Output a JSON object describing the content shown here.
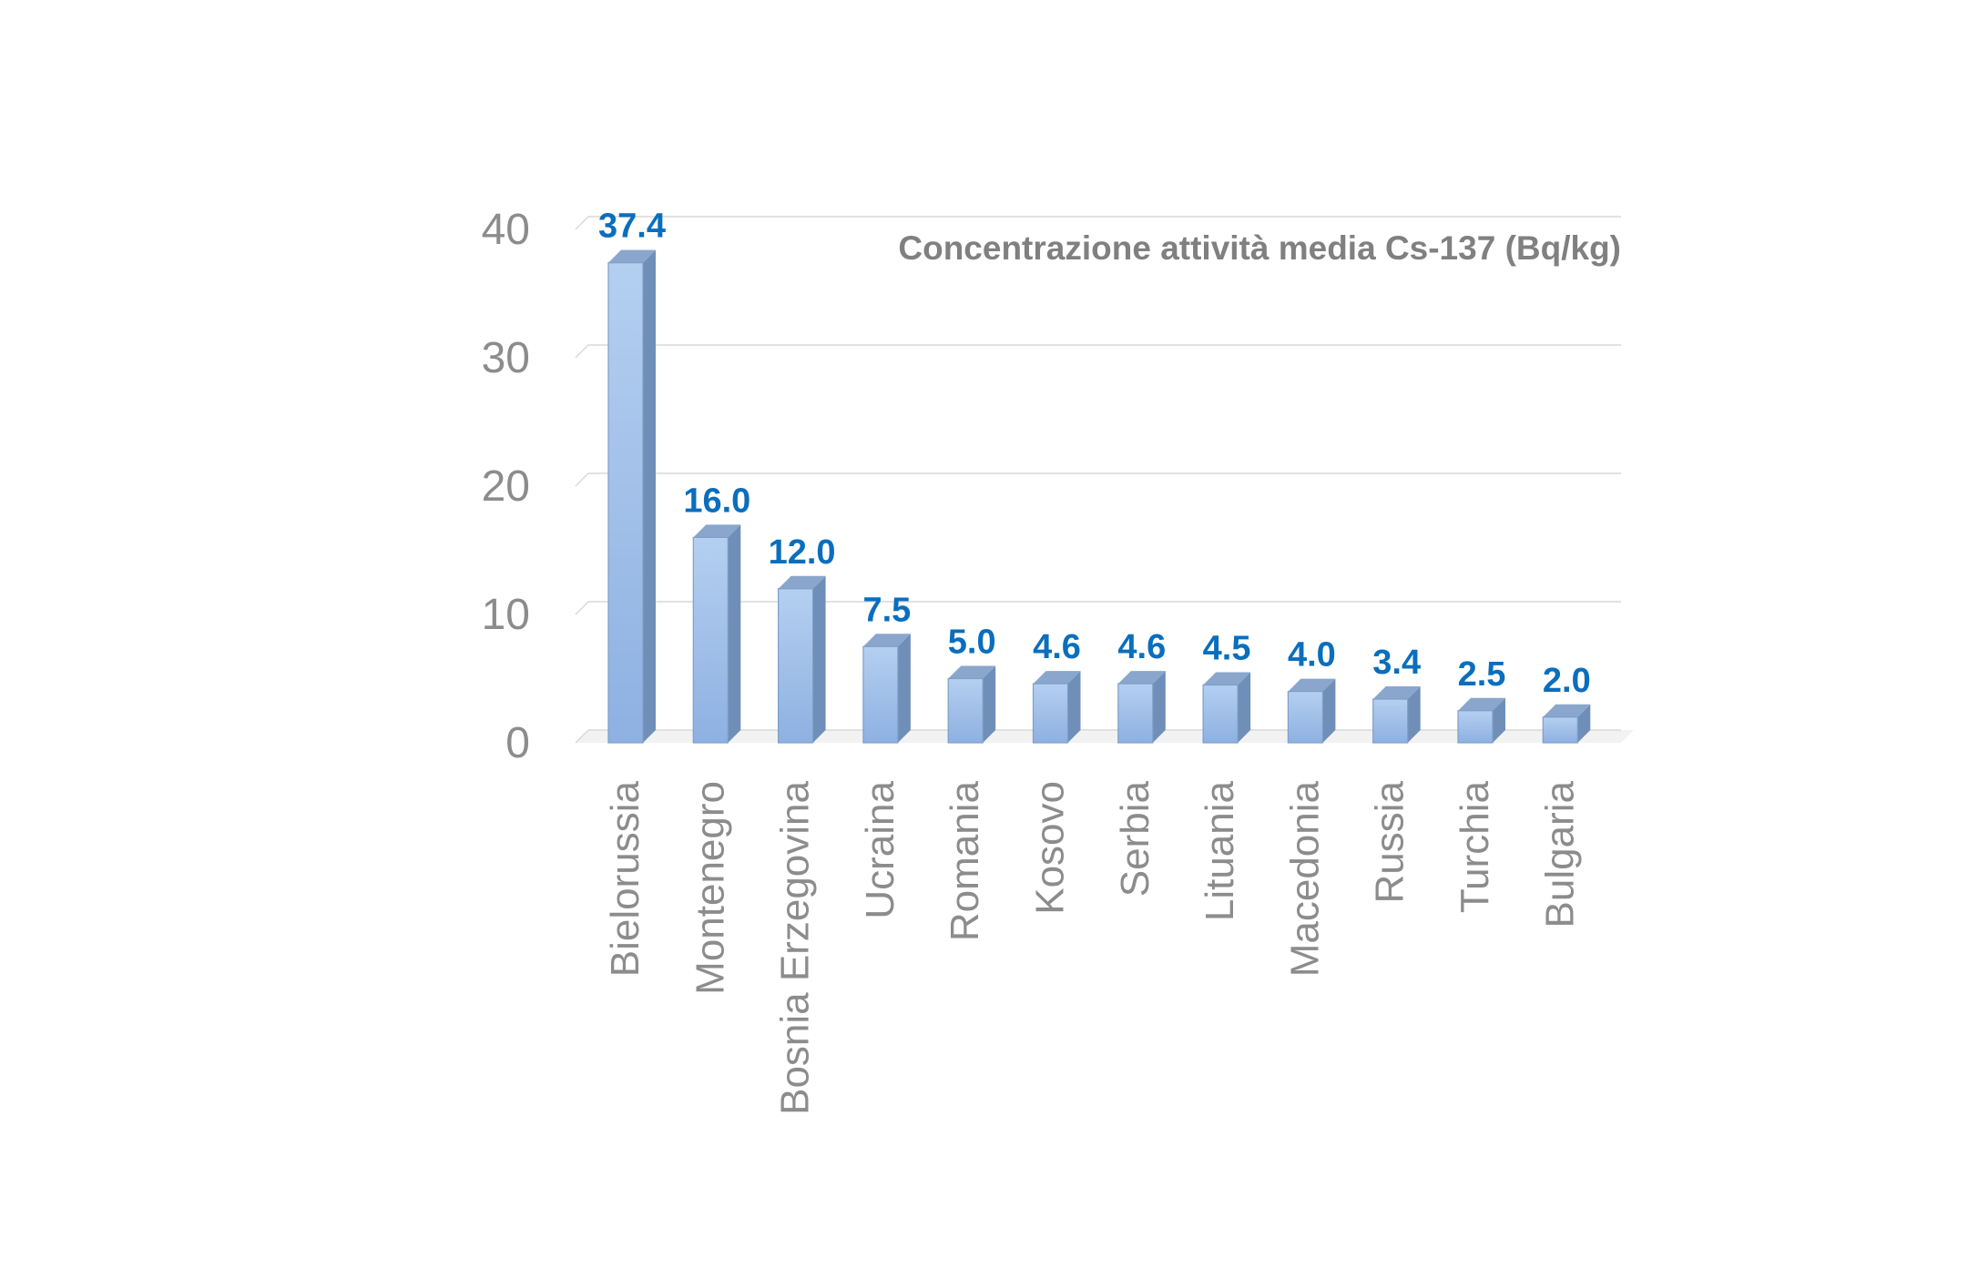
{
  "chart_data": {
    "type": "bar",
    "title": "Concentrazione attività media Cs-137 (Bq/kg)",
    "categories": [
      "Bielorussia",
      "Montenegro",
      "Bosnia Erzegovina",
      "Ucraina",
      "Romania",
      "Kosovo",
      "Serbia",
      "Lituania",
      "Macedonia",
      "Russia",
      "Turchia",
      "Bulgaria"
    ],
    "values": [
      37.4,
      16.0,
      12.0,
      7.5,
      5.0,
      4.6,
      4.6,
      4.5,
      4.0,
      3.4,
      2.5,
      2.0
    ],
    "data_labels": [
      "37.4",
      "16.0",
      "12.0",
      "7.5",
      "5.0",
      "4.6",
      "4.6",
      "4.5",
      "4.0",
      "3.4",
      "2.5",
      "2.0"
    ],
    "ylim": [
      0,
      40
    ],
    "yticks": [
      0,
      10,
      20,
      30,
      40
    ],
    "grid": true,
    "style": "3d-column",
    "colors": {
      "bar_front_top": "#b4cff0",
      "bar_front_bottom": "#8eb1e2",
      "bar_side": "#6f8fb8",
      "bar_top": "#8aa6cc",
      "data_label": "#0a6ebd"
    }
  }
}
